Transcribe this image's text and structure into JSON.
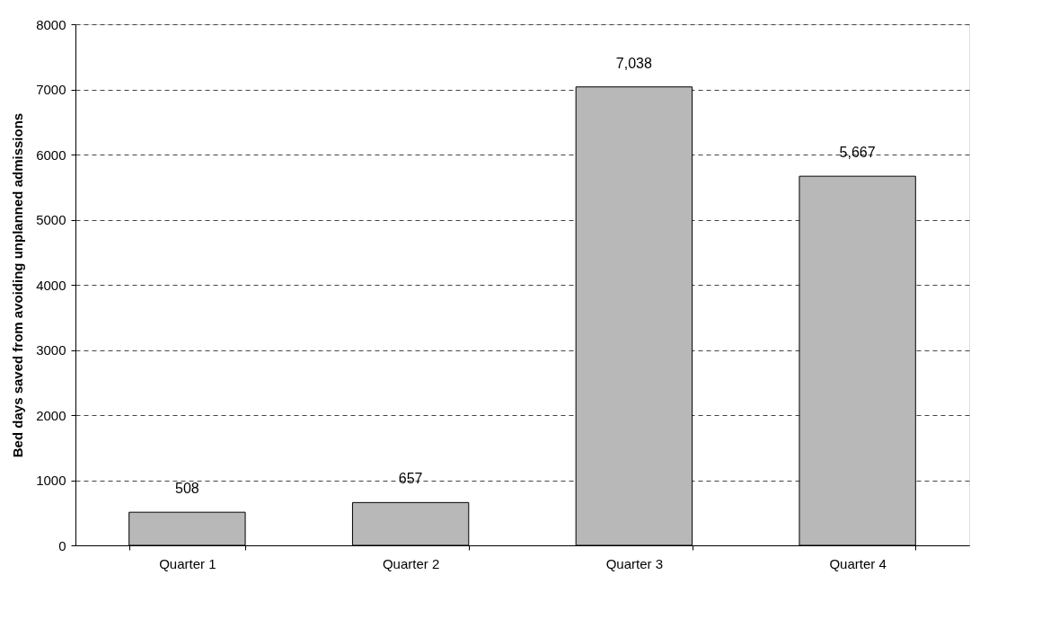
{
  "chart_data": {
    "type": "bar",
    "ylabel": "Bed days saved from avoiding unplanned admissions",
    "categories": [
      "Quarter 1",
      "Quarter 2",
      "Quarter 3",
      "Quarter 4"
    ],
    "values": [
      508,
      657,
      7038,
      5667
    ],
    "value_labels": [
      "508",
      "657",
      "7,038",
      "5,667"
    ],
    "color": "#b8b8b8",
    "ylim": [
      0,
      8000
    ],
    "yticks": [
      0,
      1000,
      2000,
      3000,
      4000,
      5000,
      6000,
      7000,
      8000
    ],
    "grid": "y"
  }
}
